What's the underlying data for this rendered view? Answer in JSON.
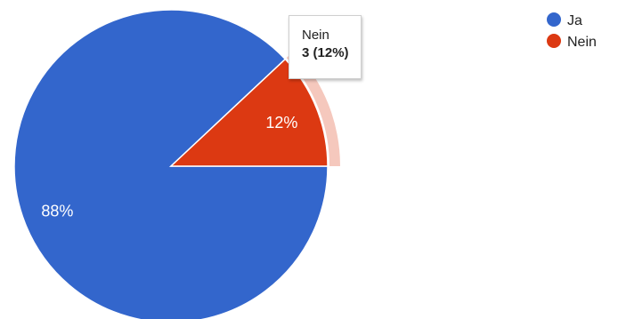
{
  "chart_data": {
    "type": "pie",
    "slices": [
      {
        "label": "Ja",
        "value": 88,
        "percent_label": "88%",
        "color": "#3366cc"
      },
      {
        "label": "Nein",
        "value": 12,
        "percent_label": "12%",
        "color": "#dc3912"
      }
    ],
    "legend": {
      "placement": "top-right",
      "entries": [
        "Ja",
        "Nein"
      ]
    },
    "highlighted_slice": "Nein",
    "tooltip": {
      "category": "Nein",
      "value_text": "3 (12%)"
    }
  }
}
